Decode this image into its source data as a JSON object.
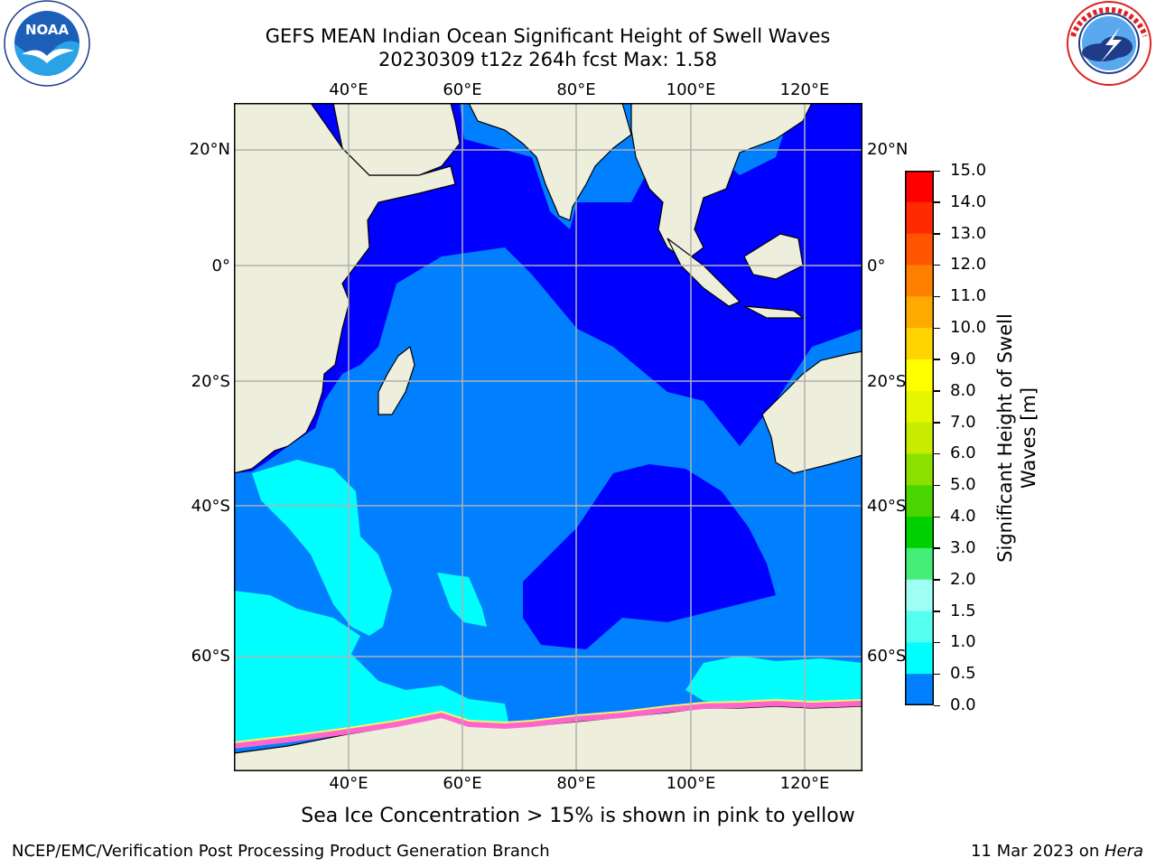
{
  "title": {
    "line1": "GEFS MEAN Indian Ocean Significant Height of Swell Waves",
    "line2": "20230309 t12z 264h fcst   Max: 1.58"
  },
  "axes": {
    "lon_ticks": [
      "40°E",
      "60°E",
      "80°E",
      "100°E",
      "120°E"
    ],
    "lat_ticks": [
      "20°N",
      "0°",
      "20°S",
      "40°S",
      "60°S"
    ]
  },
  "colorbar": {
    "title_line1": "Significant Height of Swell",
    "title_line2": "Waves [m]",
    "ticks": [
      "15.0",
      "14.0",
      "13.0",
      "12.0",
      "11.0",
      "10.0",
      "9.0",
      "8.0",
      "7.0",
      "6.0",
      "5.0",
      "4.0",
      "3.0",
      "2.0",
      "1.5",
      "1.0",
      "0.5",
      "0.0"
    ],
    "colors": [
      "#ff0000",
      "#ff2a00",
      "#ff5500",
      "#ff8000",
      "#ffaa00",
      "#ffd400",
      "#ffff00",
      "#e6f500",
      "#c8ec00",
      "#8be000",
      "#4ad400",
      "#00d000",
      "#44ee77",
      "#9ffff3",
      "#55fff0",
      "#00ffff",
      "#0080ff",
      "#0000ff"
    ]
  },
  "map": {
    "ocean_colors": {
      "lt_0_5": "#0000ff",
      "0_5_to_1": "#0080ff",
      "1_to_1_5": "#00ffff",
      "1_5_to_2": "#55fff0"
    },
    "land_color": "#eeeedd",
    "ice_colors": [
      "#ff66cc",
      "#ff99dd",
      "#ffee66"
    ]
  },
  "caption": "Sea Ice Concentration > 15% is shown in pink to yellow",
  "footer": {
    "left": "NCEP/EMC/Verification Post Processing Product Generation Branch",
    "right_date": "11 Mar 2023 on ",
    "right_host": "Hera"
  },
  "logos": {
    "noaa": "NOAA",
    "noaa_ring": "NATIONAL OCEANIC AND ATMOSPHERIC ADMINISTRATION · U.S. DEPARTMENT OF COMMERCE",
    "nws_ring": "NATIONAL WEATHER SERVICE"
  }
}
